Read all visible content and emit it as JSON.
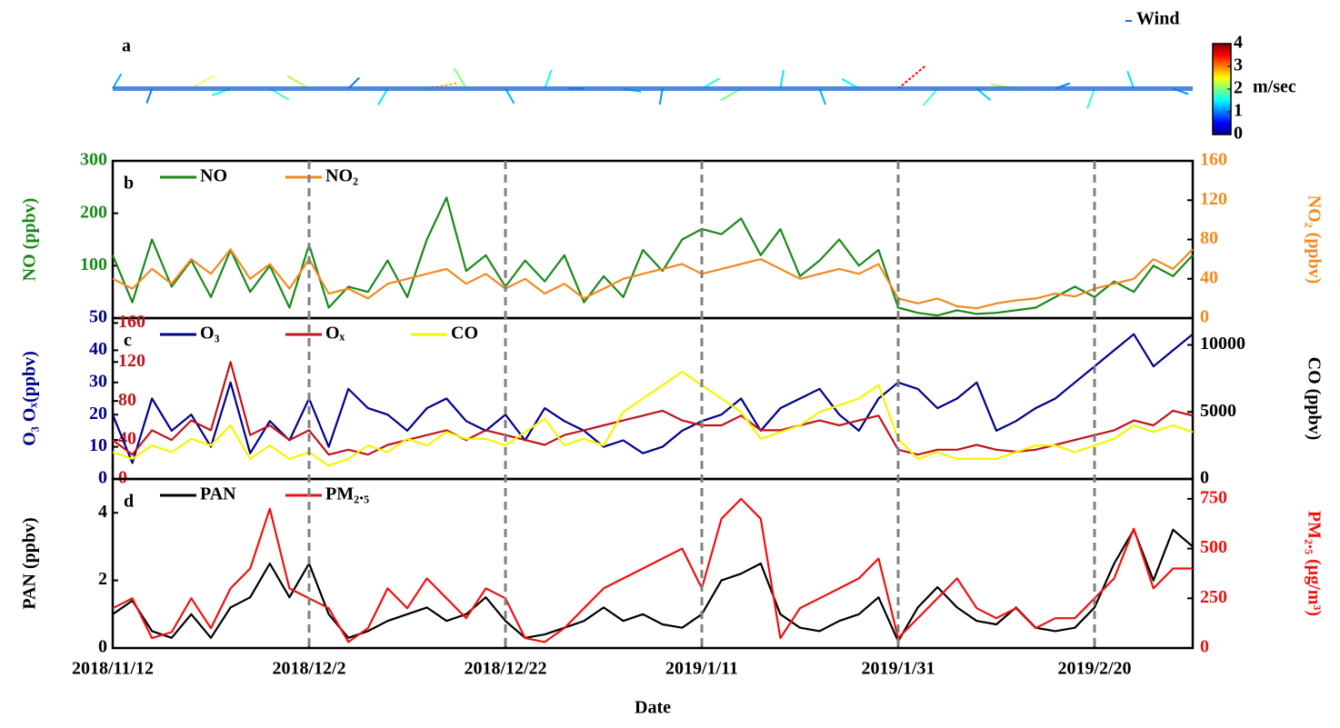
{
  "chart_data": [
    {
      "type": "quiver",
      "label": "a",
      "legend": "Wind",
      "clabel": "m/sec",
      "clim": [
        0,
        4
      ],
      "cticks": [
        0,
        1,
        2,
        3,
        4
      ],
      "xlim": [
        "2018/11/12",
        "2019/3/2"
      ],
      "x": [
        "2018/11/12",
        "2018/11/16",
        "2018/11/20",
        "2018/11/24",
        "2018/11/28",
        "2018/12/2",
        "2018/12/6",
        "2018/12/10",
        "2018/12/14",
        "2018/12/18",
        "2018/12/22",
        "2018/12/26",
        "2018/12/30",
        "2019/1/3",
        "2019/1/7",
        "2019/1/11",
        "2019/1/15",
        "2019/1/19",
        "2019/1/23",
        "2019/1/27",
        "2019/1/31",
        "2019/2/4",
        "2019/2/8",
        "2019/2/12",
        "2019/2/16",
        "2019/2/20",
        "2019/2/24",
        "2019/2/28"
      ],
      "speed": [
        1.2,
        1.0,
        2.5,
        1.5,
        1.8,
        2.2,
        1.0,
        1.4,
        2.8,
        2.0,
        1.2,
        1.5,
        1.0,
        1.3,
        1.1,
        1.6,
        2.0,
        1.4,
        1.2,
        1.5,
        3.5,
        1.8,
        1.3,
        2.2,
        1.0,
        1.7,
        1.4,
        1.1
      ],
      "direction": [
        30,
        200,
        60,
        250,
        120,
        300,
        45,
        210,
        80,
        330,
        150,
        20,
        270,
        100,
        190,
        60,
        240,
        10,
        160,
        300,
        50,
        220,
        130,
        280,
        70,
        200,
        340,
        110
      ]
    },
    {
      "type": "line",
      "label": "b",
      "ylabel": "NO (ppbv)",
      "y2label": "NO₂ (ppbv)",
      "y_color": "#1a8a1a",
      "y2_color": "#f28a1e",
      "xlim": [
        "2018/11/12",
        "2019/3/2"
      ],
      "ylim": [
        0,
        300
      ],
      "yticks": [
        100,
        200,
        300
      ],
      "y2lim": [
        0,
        160
      ],
      "y2ticks": [
        0,
        40,
        80,
        120,
        160
      ],
      "x": [
        "2018/11/12",
        "2018/11/14",
        "2018/11/16",
        "2018/11/18",
        "2018/11/20",
        "2018/11/22",
        "2018/11/24",
        "2018/11/26",
        "2018/11/28",
        "2018/11/30",
        "2018/12/2",
        "2018/12/4",
        "2018/12/6",
        "2018/12/8",
        "2018/12/10",
        "2018/12/12",
        "2018/12/14",
        "2018/12/16",
        "2018/12/18",
        "2018/12/20",
        "2018/12/22",
        "2018/12/24",
        "2018/12/26",
        "2018/12/28",
        "2018/12/30",
        "2019/1/1",
        "2019/1/3",
        "2019/1/5",
        "2019/1/7",
        "2019/1/9",
        "2019/1/11",
        "2019/1/13",
        "2019/1/15",
        "2019/1/17",
        "2019/1/19",
        "2019/1/21",
        "2019/1/23",
        "2019/1/25",
        "2019/1/27",
        "2019/1/29",
        "2019/1/31",
        "2019/2/2",
        "2019/2/4",
        "2019/2/6",
        "2019/2/8",
        "2019/2/10",
        "2019/2/12",
        "2019/2/14",
        "2019/2/16",
        "2019/2/18",
        "2019/2/20",
        "2019/2/22",
        "2019/2/24",
        "2019/2/26",
        "2019/2/28",
        "2019/3/2"
      ],
      "series": [
        {
          "name": "NO",
          "color": "#1a8a1a",
          "values": [
            120,
            30,
            150,
            60,
            110,
            40,
            130,
            50,
            100,
            20,
            140,
            20,
            60,
            50,
            110,
            40,
            150,
            230,
            90,
            120,
            60,
            110,
            70,
            120,
            30,
            80,
            40,
            130,
            90,
            150,
            170,
            160,
            190,
            120,
            170,
            80,
            110,
            150,
            100,
            130,
            20,
            10,
            5,
            15,
            8,
            10,
            15,
            20,
            40,
            60,
            40,
            70,
            50,
            100,
            80,
            120
          ]
        },
        {
          "name": "NO₂",
          "color": "#f28a1e",
          "axis": "y2",
          "values": [
            40,
            30,
            50,
            35,
            60,
            45,
            70,
            40,
            55,
            30,
            60,
            25,
            30,
            20,
            35,
            40,
            45,
            50,
            35,
            45,
            30,
            40,
            25,
            35,
            20,
            30,
            40,
            45,
            50,
            55,
            45,
            50,
            55,
            60,
            50,
            40,
            45,
            50,
            45,
            55,
            20,
            15,
            20,
            12,
            10,
            15,
            18,
            20,
            25,
            22,
            30,
            35,
            40,
            60,
            50,
            70
          ]
        }
      ]
    },
    {
      "type": "line",
      "label": "c",
      "ylabel": "O₃ Oₓ(ppbv)",
      "y2label": "CO (ppbv)",
      "y_color": "#00008b",
      "y2_color": "#000000",
      "y3_color": "#c0141c",
      "xlim": [
        "2018/11/12",
        "2019/3/2"
      ],
      "ylim": [
        0,
        50
      ],
      "yticks": [
        0,
        10,
        20,
        30,
        40,
        50
      ],
      "y2lim": [
        0,
        12000
      ],
      "y2ticks": [
        0,
        5000,
        10000
      ],
      "y3lim": [
        0,
        165
      ],
      "y3ticks": [
        0,
        40,
        80,
        120,
        160
      ],
      "x": [
        "2018/11/12",
        "2018/11/14",
        "2018/11/16",
        "2018/11/18",
        "2018/11/20",
        "2018/11/22",
        "2018/11/24",
        "2018/11/26",
        "2018/11/28",
        "2018/11/30",
        "2018/12/2",
        "2018/12/4",
        "2018/12/6",
        "2018/12/8",
        "2018/12/10",
        "2018/12/12",
        "2018/12/14",
        "2018/12/16",
        "2018/12/18",
        "2018/12/20",
        "2018/12/22",
        "2018/12/24",
        "2018/12/26",
        "2018/12/28",
        "2018/12/30",
        "2019/1/1",
        "2019/1/3",
        "2019/1/5",
        "2019/1/7",
        "2019/1/9",
        "2019/1/11",
        "2019/1/13",
        "2019/1/15",
        "2019/1/17",
        "2019/1/19",
        "2019/1/21",
        "2019/1/23",
        "2019/1/25",
        "2019/1/27",
        "2019/1/29",
        "2019/1/31",
        "2019/2/2",
        "2019/2/4",
        "2019/2/6",
        "2019/2/8",
        "2019/2/10",
        "2019/2/12",
        "2019/2/14",
        "2019/2/16",
        "2019/2/18",
        "2019/2/20",
        "2019/2/22",
        "2019/2/24",
        "2019/2/26",
        "2019/2/28",
        "2019/3/2"
      ],
      "series": [
        {
          "name": "O₃",
          "color": "#00008b",
          "values": [
            20,
            5,
            25,
            15,
            20,
            10,
            30,
            8,
            18,
            12,
            25,
            10,
            28,
            22,
            20,
            15,
            22,
            25,
            18,
            15,
            20,
            12,
            22,
            18,
            15,
            10,
            12,
            8,
            10,
            15,
            18,
            20,
            25,
            15,
            22,
            25,
            28,
            20,
            15,
            25,
            30,
            28,
            22,
            25,
            30,
            15,
            18,
            22,
            25,
            30,
            35,
            40,
            45,
            35,
            40,
            45
          ]
        },
        {
          "name": "Oₓ",
          "color": "#c0141c",
          "axis": "y3",
          "values": [
            40,
            25,
            50,
            40,
            60,
            50,
            120,
            45,
            55,
            40,
            50,
            25,
            30,
            25,
            35,
            40,
            45,
            50,
            40,
            50,
            45,
            40,
            35,
            45,
            50,
            55,
            60,
            65,
            70,
            60,
            55,
            55,
            65,
            50,
            50,
            55,
            60,
            55,
            60,
            65,
            30,
            25,
            30,
            30,
            35,
            30,
            28,
            30,
            35,
            40,
            45,
            50,
            60,
            55,
            70,
            65
          ]
        },
        {
          "name": "CO",
          "color": "#f5f500",
          "axis": "y2",
          "values": [
            2000,
            1500,
            2500,
            2000,
            3000,
            2500,
            4000,
            1500,
            2500,
            1500,
            2000,
            1000,
            1500,
            2500,
            2000,
            3000,
            2500,
            3500,
            3000,
            3000,
            2500,
            3500,
            4500,
            2500,
            3000,
            2500,
            5000,
            6000,
            7000,
            8000,
            7000,
            6000,
            5000,
            3000,
            3500,
            4000,
            5000,
            5500,
            6000,
            7000,
            3000,
            1500,
            2000,
            1500,
            1500,
            1500,
            2000,
            2500,
            2500,
            2000,
            2500,
            3000,
            4000,
            3500,
            4000,
            3500
          ]
        }
      ]
    },
    {
      "type": "line",
      "label": "d",
      "ylabel": "PAN (ppbv)",
      "y2label": "PM₂.₅ (µg/m³)",
      "xlabel": "Date",
      "y_color": "#000000",
      "y2_color": "#ee1111",
      "grid": "dashed",
      "xlim": [
        "2018/11/12",
        "2019/3/2"
      ],
      "xticks": [
        "2018/11/12",
        "2018/12/2",
        "2018/12/22",
        "2019/1/11",
        "2019/1/31",
        "2019/2/20"
      ],
      "ylim": [
        0,
        5
      ],
      "yticks": [
        0,
        2,
        4
      ],
      "y2lim": [
        0,
        850
      ],
      "y2ticks": [
        0,
        250,
        500,
        750
      ],
      "x": [
        "2018/11/12",
        "2018/11/14",
        "2018/11/16",
        "2018/11/18",
        "2018/11/20",
        "2018/11/22",
        "2018/11/24",
        "2018/11/26",
        "2018/11/28",
        "2018/11/30",
        "2018/12/2",
        "2018/12/4",
        "2018/12/6",
        "2018/12/8",
        "2018/12/10",
        "2018/12/12",
        "2018/12/14",
        "2018/12/16",
        "2018/12/18",
        "2018/12/20",
        "2018/12/22",
        "2018/12/24",
        "2018/12/26",
        "2018/12/28",
        "2018/12/30",
        "2019/1/1",
        "2019/1/3",
        "2019/1/5",
        "2019/1/7",
        "2019/1/9",
        "2019/1/11",
        "2019/1/13",
        "2019/1/15",
        "2019/1/17",
        "2019/1/19",
        "2019/1/21",
        "2019/1/23",
        "2019/1/25",
        "2019/1/27",
        "2019/1/29",
        "2019/1/31",
        "2019/2/2",
        "2019/2/4",
        "2019/2/6",
        "2019/2/8",
        "2019/2/10",
        "2019/2/12",
        "2019/2/14",
        "2019/2/16",
        "2019/2/18",
        "2019/2/20",
        "2019/2/22",
        "2019/2/24",
        "2019/2/26",
        "2019/2/28",
        "2019/3/2"
      ],
      "series": [
        {
          "name": "PAN",
          "color": "#000000",
          "values": [
            1.0,
            1.4,
            0.5,
            0.3,
            1.0,
            0.3,
            1.2,
            1.5,
            2.5,
            1.5,
            2.5,
            1.0,
            0.3,
            0.5,
            0.8,
            1.0,
            1.2,
            0.8,
            1.0,
            1.5,
            0.8,
            0.3,
            0.4,
            0.6,
            0.8,
            1.2,
            0.8,
            1.0,
            0.7,
            0.6,
            1.0,
            2.0,
            2.2,
            2.5,
            1.0,
            0.6,
            0.5,
            0.8,
            1.0,
            1.5,
            0.2,
            1.2,
            1.8,
            1.2,
            0.8,
            0.7,
            1.2,
            0.6,
            0.5,
            0.6,
            1.2,
            2.5,
            3.5,
            2.0,
            3.5,
            3.0
          ]
        },
        {
          "name": "PM₂.₅",
          "color": "#ee1111",
          "axis": "y2",
          "values": [
            200,
            250,
            50,
            80,
            250,
            100,
            300,
            400,
            700,
            300,
            250,
            200,
            30,
            100,
            300,
            200,
            350,
            250,
            150,
            300,
            250,
            50,
            30,
            100,
            200,
            300,
            350,
            400,
            450,
            500,
            300,
            650,
            750,
            650,
            50,
            200,
            250,
            300,
            350,
            450,
            50,
            150,
            250,
            350,
            200,
            150,
            200,
            100,
            150,
            150,
            250,
            350,
            600,
            300,
            400,
            400
          ]
        }
      ]
    }
  ]
}
